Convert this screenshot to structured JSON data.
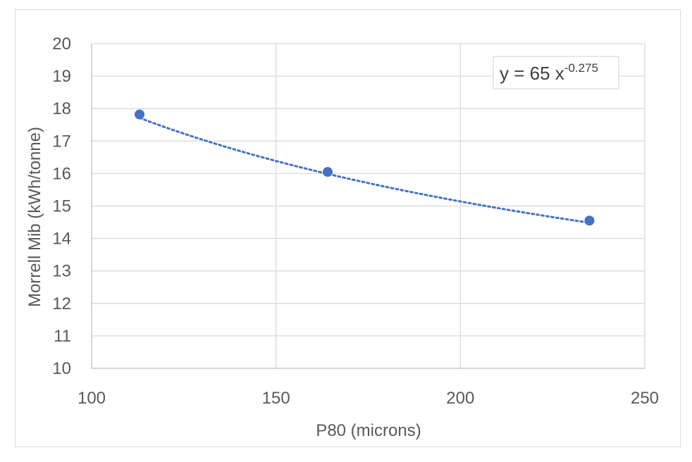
{
  "chart_data": {
    "type": "scatter",
    "title": "",
    "xlabel": "P80 (microns)",
    "ylabel": "Morrell Mib (kWh/tonne)",
    "xlim": [
      100,
      250
    ],
    "ylim": [
      10,
      20
    ],
    "x_ticks": [
      100,
      150,
      200,
      250
    ],
    "y_ticks": [
      10,
      11,
      12,
      13,
      14,
      15,
      16,
      17,
      18,
      19,
      20
    ],
    "grid": true,
    "legend": "none",
    "series": [
      {
        "x": [
          113,
          164,
          235
        ],
        "y": [
          17.82,
          16.05,
          14.55
        ],
        "color": "#4472c4",
        "marker": "circle"
      }
    ],
    "trendline": {
      "type": "power",
      "coefficient": 65,
      "exponent": -0.275,
      "style": "dotted",
      "color": "#4472c4",
      "label_main": "y = 65 x",
      "label_sup": "-0.275"
    }
  }
}
